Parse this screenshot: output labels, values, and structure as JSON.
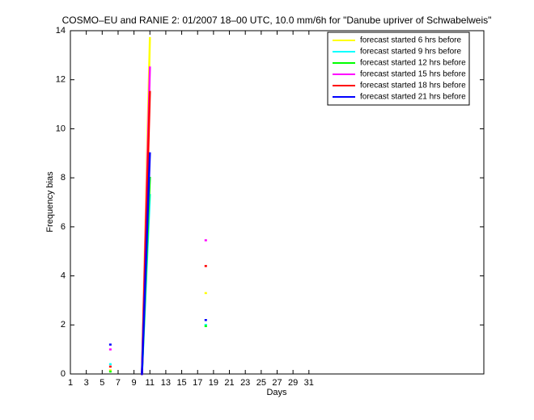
{
  "chart_data": {
    "type": "line",
    "title": "COSMO–EU and RANIE 2: 01/2007 18–00 UTC, 10.0 mm/6h for \"Danube upriver of Schwabelweis\"",
    "x_label": "Days",
    "y_label": "Frequency bias",
    "x": [
      1,
      2,
      3,
      4,
      5,
      6,
      7,
      8,
      9,
      10,
      11,
      12,
      13,
      14,
      15,
      16,
      17,
      18,
      19,
      20,
      21,
      22,
      23,
      24,
      25,
      26,
      27,
      28,
      29,
      30,
      31
    ],
    "series": [
      {
        "name": "forecast started 6 hrs before",
        "color": "#ffff00",
        "values": [
          null,
          null,
          null,
          null,
          null,
          0.15,
          null,
          null,
          null,
          0,
          13.7,
          null,
          null,
          null,
          null,
          null,
          null,
          3.3,
          null,
          null,
          null,
          null,
          null,
          null,
          null,
          null,
          null,
          null,
          null,
          null,
          null
        ]
      },
      {
        "name": "forecast started 9 hrs before",
        "color": "#00ffff",
        "values": [
          null,
          null,
          null,
          null,
          null,
          0.4,
          null,
          null,
          null,
          0,
          7.3,
          null,
          null,
          null,
          null,
          null,
          null,
          2.0,
          null,
          null,
          null,
          null,
          null,
          null,
          null,
          null,
          null,
          null,
          null,
          null,
          null
        ]
      },
      {
        "name": "forecast started 12 hrs before",
        "color": "#00ff00",
        "values": [
          null,
          null,
          null,
          null,
          null,
          0.1,
          null,
          null,
          null,
          0,
          8.0,
          null,
          null,
          null,
          null,
          null,
          null,
          1.95,
          null,
          null,
          null,
          null,
          null,
          null,
          null,
          null,
          null,
          null,
          null,
          null,
          null
        ]
      },
      {
        "name": "forecast started 15 hrs before",
        "color": "#ff00ff",
        "values": [
          null,
          null,
          null,
          null,
          null,
          1.0,
          null,
          null,
          null,
          0,
          12.5,
          null,
          null,
          null,
          null,
          null,
          null,
          5.45,
          null,
          null,
          null,
          null,
          null,
          null,
          null,
          null,
          null,
          null,
          null,
          null,
          null
        ]
      },
      {
        "name": "forecast started 18 hrs before",
        "color": "#ff0000",
        "values": [
          null,
          null,
          null,
          null,
          null,
          0.3,
          null,
          null,
          null,
          0,
          11.5,
          null,
          null,
          null,
          null,
          null,
          null,
          4.4,
          null,
          null,
          null,
          null,
          null,
          null,
          null,
          null,
          null,
          null,
          null,
          null,
          null
        ]
      },
      {
        "name": "forecast started 21 hrs before",
        "color": "#0000ff",
        "values": [
          null,
          null,
          null,
          null,
          null,
          1.2,
          null,
          null,
          null,
          0,
          9.0,
          null,
          null,
          null,
          null,
          null,
          null,
          2.2,
          null,
          null,
          null,
          null,
          null,
          null,
          null,
          null,
          null,
          null,
          null,
          null,
          null
        ]
      }
    ],
    "xlim": [
      1,
      53
    ],
    "ylim": [
      0,
      14
    ],
    "xticks": [
      1,
      3,
      5,
      7,
      9,
      11,
      13,
      15,
      17,
      19,
      21,
      23,
      25,
      27,
      29,
      31
    ],
    "yticks": [
      0,
      2,
      4,
      6,
      8,
      10,
      12,
      14
    ],
    "grid": false,
    "legend": "top-right"
  }
}
